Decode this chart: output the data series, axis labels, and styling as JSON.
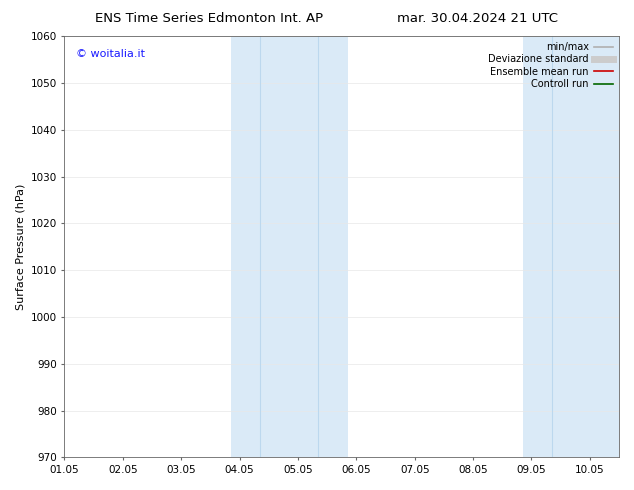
{
  "title_left": "ENS Time Series Edmonton Int. AP",
  "title_right": "mar. 30.04.2024 21 UTC",
  "ylabel": "Surface Pressure (hPa)",
  "xlim": [
    0.0,
    9.5
  ],
  "ylim": [
    970,
    1060
  ],
  "yticks": [
    970,
    980,
    990,
    1000,
    1010,
    1020,
    1030,
    1040,
    1050,
    1060
  ],
  "xtick_labels": [
    "01.05",
    "02.05",
    "03.05",
    "04.05",
    "05.05",
    "06.05",
    "07.05",
    "08.05",
    "09.05",
    "10.05"
  ],
  "xtick_positions": [
    0,
    1,
    2,
    3,
    4,
    5,
    6,
    7,
    8,
    9
  ],
  "shaded_regions": [
    {
      "xmin": 2.85,
      "xmax": 4.85,
      "color": "#daeaf7"
    },
    {
      "xmin": 7.85,
      "xmax": 9.5,
      "color": "#daeaf7"
    }
  ],
  "vertical_lines_inner": [
    {
      "x": 3.35,
      "color": "#bcd8ee",
      "lw": 0.8
    },
    {
      "x": 4.35,
      "color": "#bcd8ee",
      "lw": 0.8
    },
    {
      "x": 8.35,
      "color": "#bcd8ee",
      "lw": 0.8
    }
  ],
  "legend_entries": [
    {
      "label": "min/max",
      "color": "#b0b0b0",
      "lw": 1.2,
      "style": "solid"
    },
    {
      "label": "Deviazione standard",
      "color": "#cccccc",
      "lw": 5,
      "style": "solid"
    },
    {
      "label": "Ensemble mean run",
      "color": "#cc0000",
      "lw": 1.2,
      "style": "solid"
    },
    {
      "label": "Controll run",
      "color": "#006600",
      "lw": 1.2,
      "style": "solid"
    }
  ],
  "watermark": "© woitalia.it",
  "watermark_color": "#1a1aff",
  "bg_color": "#ffffff",
  "grid_color": "#e8e8e8",
  "title_fontsize": 9.5,
  "tick_fontsize": 7.5,
  "ylabel_fontsize": 8,
  "legend_fontsize": 7,
  "watermark_fontsize": 8
}
